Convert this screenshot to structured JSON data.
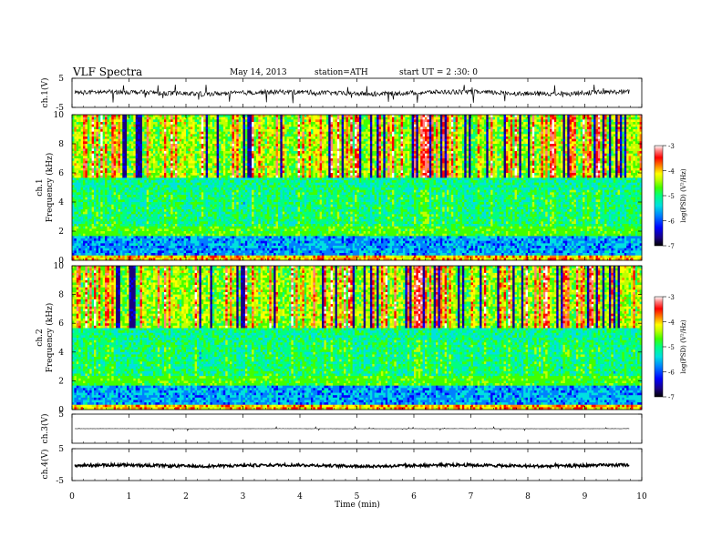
{
  "header": {
    "title": "VLF  Spectra",
    "date": "May 14, 2013",
    "station": "station=ATH",
    "start": "start  UT  =   2  :30: 0"
  },
  "colors": {
    "spectrogram_scale": [
      "#000000",
      "#1a0080",
      "#0000ff",
      "#0080ff",
      "#00e0e0",
      "#00ff80",
      "#40ff00",
      "#c0ff00",
      "#ffff00",
      "#ff8000",
      "#ff0000",
      "#ff8080",
      "#ffffff"
    ],
    "trace": "#000000",
    "frame": "#000000"
  },
  "chart_data": [
    {
      "type": "line",
      "name": "ch1-waveform",
      "ylabel": "ch.1(V)",
      "ylim": [
        -5,
        5
      ],
      "y_ticks": [
        "5",
        "-5"
      ],
      "xlim": [
        0,
        10
      ],
      "baseline": 0,
      "amplitude_band": [
        -1.2,
        1.2
      ],
      "description_of_values": "continuous noisy trace near 0 V with spikes"
    },
    {
      "type": "heatmap",
      "name": "ch1-spectrogram",
      "ylabel": "Frequency (kHz)",
      "channel_label": "ch.1",
      "xlim": [
        0,
        10
      ],
      "ylim": [
        0,
        10
      ],
      "y_ticks": [
        "10",
        "8",
        "6",
        "4",
        "2",
        "0"
      ],
      "colorbar": {
        "label": "log(PSD) (V²/Hz)",
        "range": [
          -7,
          -3
        ],
        "ticks": [
          "-3",
          "-4",
          "-5",
          "-6",
          "-7"
        ]
      }
    },
    {
      "type": "heatmap",
      "name": "ch2-spectrogram",
      "ylabel": "Frequency (kHz)",
      "channel_label": "ch.2",
      "xlim": [
        0,
        10
      ],
      "ylim": [
        0,
        10
      ],
      "y_ticks": [
        "10",
        "8",
        "6",
        "4",
        "2",
        "0"
      ],
      "colorbar": {
        "label": "log(PSD) (V²/Hz)",
        "range": [
          -7,
          -3
        ],
        "ticks": [
          "-3",
          "-4",
          "-5",
          "-6",
          "-7"
        ]
      }
    },
    {
      "type": "line",
      "name": "ch3-waveform",
      "ylabel": "ch.3(V)",
      "ylim": [
        -5,
        5
      ],
      "y_ticks": [
        "5"
      ],
      "xlim": [
        0,
        10
      ],
      "baseline": 0
    },
    {
      "type": "line",
      "name": "ch4-waveform",
      "ylabel": "ch.4(V)",
      "ylim": [
        -5,
        5
      ],
      "y_ticks": [
        "5",
        "-5"
      ],
      "xlim": [
        0,
        10
      ],
      "baseline": -0.3
    }
  ],
  "x_axis": {
    "label": "Time  (min)",
    "ticks": [
      "0",
      "1",
      "2",
      "3",
      "4",
      "5",
      "6",
      "7",
      "8",
      "9",
      "10"
    ]
  }
}
